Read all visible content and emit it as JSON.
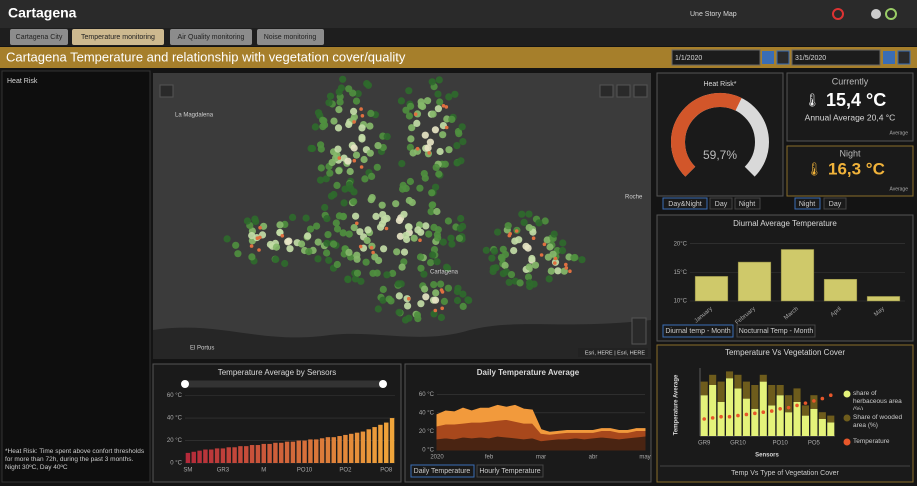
{
  "header": {
    "title": "Cartagena",
    "story_map": "Une Story Map"
  },
  "tabs": [
    "Cartagena City",
    "Temperature monitoring",
    "Air Quality monitoring",
    "Noise monitoring"
  ],
  "title": "Cartagena Temperature and relationship with vegetation cover/quality",
  "dates": {
    "start": "1/1/2020",
    "end": "31/5/2020"
  },
  "heat_risk_panel": {
    "title": "Heat Risk",
    "note": "*Heat Risk: Time spent above confort thresholds for more than 72h, during the past 3 months. Night 30ºC, Day 40ºC"
  },
  "map": {
    "labels": [
      "La Magdalena",
      "Cartagena",
      "El Portus",
      "Roche"
    ],
    "attribution": "Esri, HERE | Esri, HERE"
  },
  "currently": {
    "title": "Currently",
    "value": "15,4 °C",
    "annual": "Annual Average 20,4 °C",
    "caption": "Average"
  },
  "night": {
    "title": "Night",
    "value": "16,3 °C",
    "caption": "Average",
    "tabs": [
      "Night",
      "Day"
    ]
  },
  "chart_data": [
    {
      "type": "gauge",
      "title": "Heat Risk*",
      "value": 59.7,
      "value_label": "59,7%",
      "ylim": [
        0,
        100
      ],
      "color": "#d2562a",
      "track_color": "#d9d9d9",
      "tabs": [
        "Day&Night",
        "Day",
        "Night"
      ]
    },
    {
      "type": "bar",
      "title": "Diurnal  Average Temperature",
      "categories": [
        "January",
        "February",
        "March",
        "April",
        "May"
      ],
      "values": [
        14.3,
        16.8,
        19,
        13.8,
        10.8
      ],
      "color": "#cfc96a",
      "ylim": [
        10,
        21
      ],
      "yticks": [
        {
          "value": 10,
          "label": "10°C"
        },
        {
          "value": 15,
          "label": "15°C"
        },
        {
          "value": 20,
          "label": "20°C"
        }
      ],
      "grid": true,
      "tabs": [
        "Diurnal temp - Month",
        "Nocturnal Temp - Month"
      ]
    },
    {
      "type": "bar",
      "title": "Temperature Average by Sensors",
      "categories": [
        "SM",
        null,
        null,
        null,
        null,
        null,
        "GR3",
        null,
        null,
        null,
        null,
        null,
        null,
        "M",
        null,
        null,
        null,
        null,
        null,
        null,
        "PO10",
        null,
        null,
        null,
        null,
        null,
        null,
        "PO2",
        null,
        null,
        null,
        null,
        null,
        null,
        "PO8",
        null
      ],
      "values": [
        9,
        10,
        11,
        12,
        12,
        13,
        13,
        14,
        14,
        15,
        15,
        16,
        16,
        17,
        17,
        18,
        18,
        19,
        19,
        20,
        20,
        21,
        21,
        22,
        23,
        23,
        24,
        25,
        26,
        27,
        28,
        30,
        32,
        34,
        36,
        40
      ],
      "color_start": "#b52a3a",
      "color_end": "#f0a53a",
      "ylim": [
        0,
        65
      ],
      "yticks": [
        {
          "value": 0,
          "label": "0 °C"
        },
        {
          "value": 20,
          "label": "20 °C"
        },
        {
          "value": 40,
          "label": "40 °C"
        },
        {
          "value": 60,
          "label": "60 °C"
        }
      ],
      "grid": true
    },
    {
      "type": "area",
      "title": "Daily Temperature Average",
      "categories": [
        "2020",
        null,
        null,
        null,
        null,
        null,
        "feb",
        null,
        null,
        null,
        null,
        null,
        "mar",
        null,
        null,
        null,
        null,
        null,
        "abr",
        null,
        null,
        null,
        null,
        null,
        "may"
      ],
      "series": [
        {
          "color": "#4a2412",
          "values": [
            12,
            13,
            12,
            14,
            13,
            14,
            13,
            15,
            14,
            13,
            12,
            13,
            10,
            11,
            12,
            12,
            13,
            12,
            13,
            14,
            13,
            12,
            13,
            14,
            15
          ]
        },
        {
          "color": "#a8481c",
          "values": [
            14,
            15,
            16,
            15,
            17,
            16,
            18,
            17,
            19,
            18,
            17,
            16,
            8,
            6,
            6,
            7,
            6,
            7,
            6,
            7,
            8,
            7,
            6,
            7,
            6
          ]
        },
        {
          "color": "#f29a3c",
          "values": [
            12,
            14,
            13,
            16,
            12,
            15,
            14,
            16,
            13,
            17,
            15,
            14,
            4,
            2,
            2,
            2,
            2,
            2,
            2,
            2,
            2,
            2,
            2,
            2,
            2
          ]
        }
      ],
      "ylim": [
        0,
        70
      ],
      "yticks": [
        {
          "value": 0,
          "label": "0 °C"
        },
        {
          "value": 20,
          "label": "20 °C"
        },
        {
          "value": 40,
          "label": "40 °C"
        },
        {
          "value": 60,
          "label": "60 °C"
        }
      ],
      "grid": true,
      "tabs": [
        "Daily Temperature",
        "Hourly Temperature"
      ]
    },
    {
      "type": "combo",
      "title": "Temperature Vs Vegetation Cover",
      "x_label": "Sensors",
      "y_label": "Temperature Average",
      "categories": [
        "GR9",
        null,
        null,
        null,
        "GR10",
        null,
        null,
        null,
        null,
        "PO10",
        null,
        null,
        null,
        "PO5",
        null,
        null
      ],
      "series": [
        {
          "name": "share of herbaceous area (%)",
          "type": "bar",
          "color": "#e4f27a",
          "values": [
            60,
            75,
            50,
            85,
            70,
            55,
            40,
            80,
            45,
            60,
            35,
            50,
            30,
            40,
            25,
            20
          ]
        },
        {
          "name": "Share of wooded area (%)",
          "type": "bar",
          "color": "#6e5c1c",
          "values": [
            20,
            15,
            30,
            10,
            20,
            25,
            35,
            10,
            30,
            15,
            25,
            20,
            15,
            20,
            10,
            10
          ]
        },
        {
          "name": "Temperature",
          "type": "scatter",
          "axis": "y2",
          "color": "#e8572a",
          "values": [
            15,
            16,
            17,
            17,
            18,
            19,
            20,
            21,
            22,
            24,
            25,
            27,
            29,
            31,
            33,
            36
          ]
        }
      ],
      "ylim": [
        0,
        100
      ],
      "y2lim": [
        0,
        60
      ],
      "footer": "Temp Vs Type of Vegetation Cover"
    }
  ]
}
